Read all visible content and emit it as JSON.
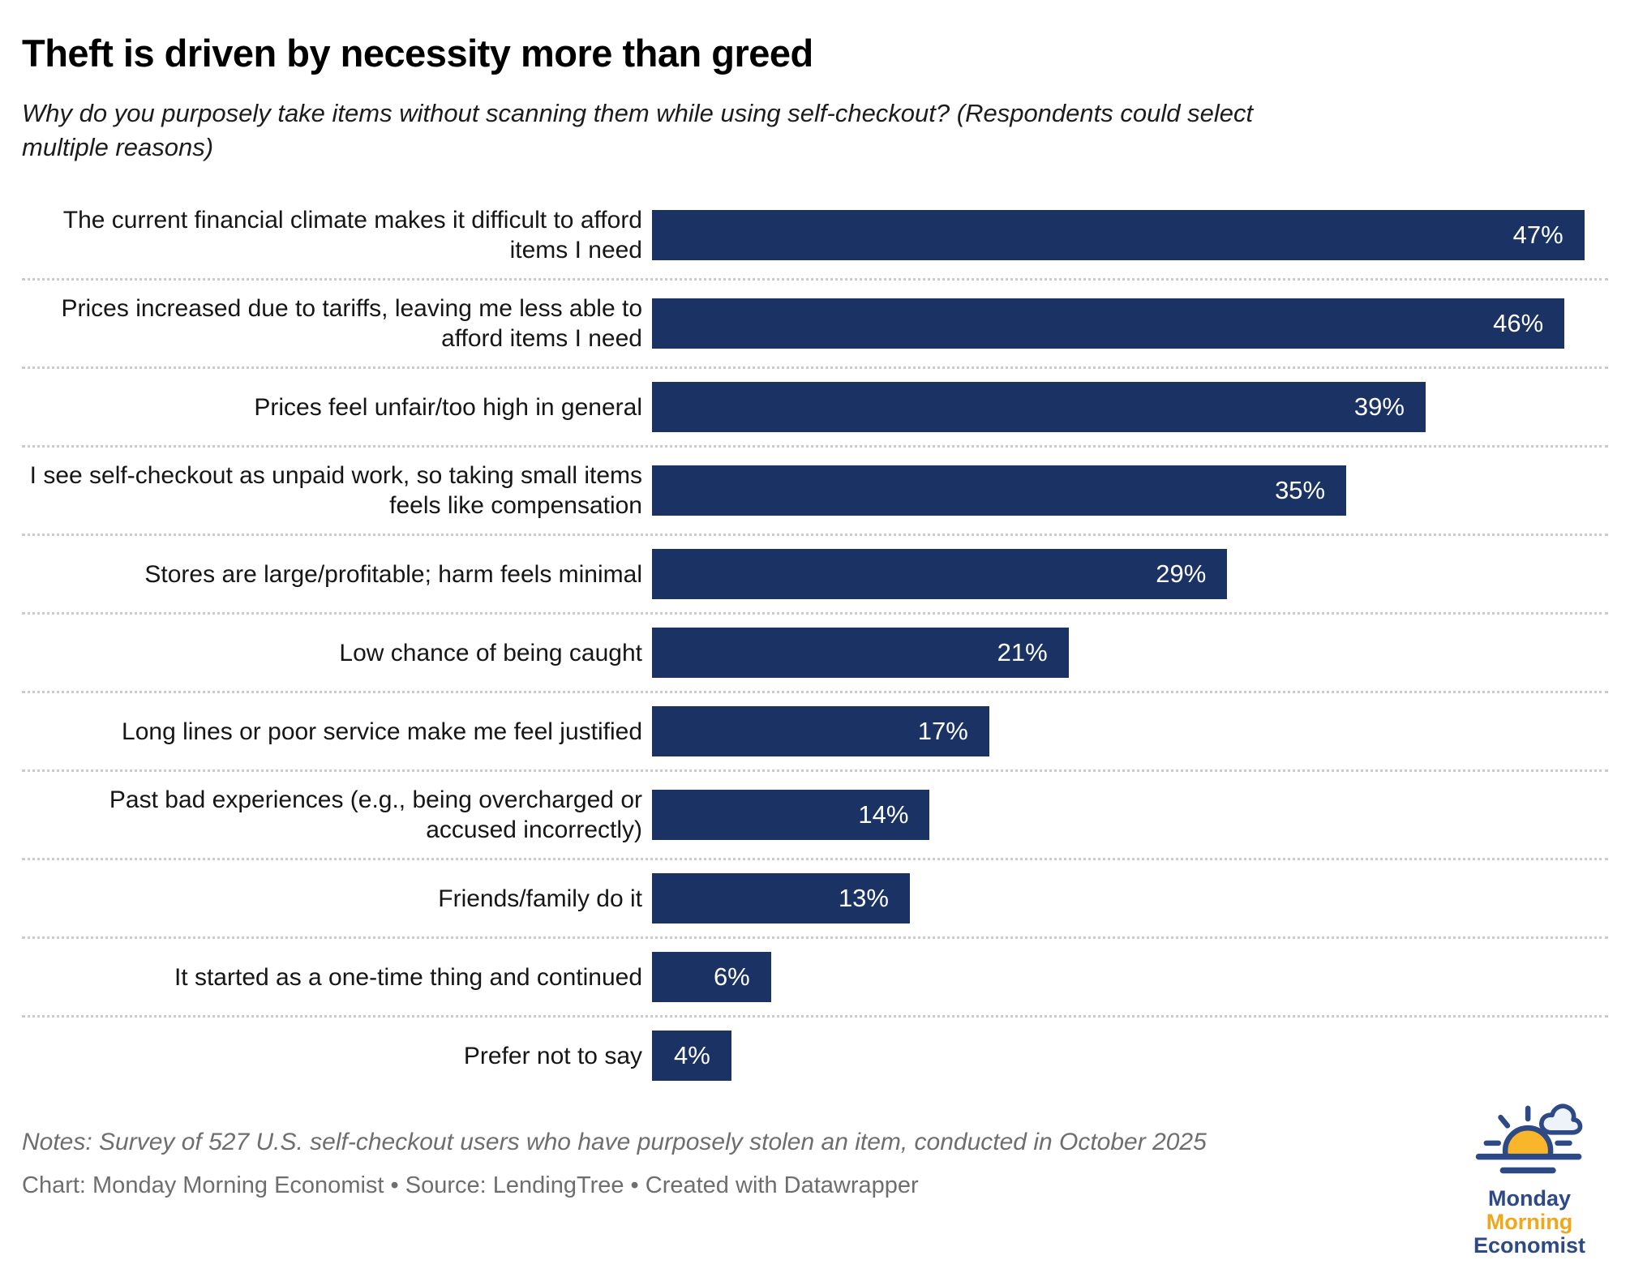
{
  "title": "Theft is driven by necessity more than greed",
  "subtitle": "Why do you purposely take items without scanning them while using self-checkout? (Respondents could select multiple reasons)",
  "chart_data": {
    "type": "bar",
    "orientation": "horizontal",
    "title": "Theft is driven by necessity more than greed",
    "subtitle": "Why do you purposely take items without scanning them while using self-checkout? (Respondents could select multiple reasons)",
    "categories": [
      "The current financial climate makes it difficult to afford items I need",
      "Prices increased due to tariffs, leaving me less able to afford items I need",
      "Prices feel unfair/too high in general",
      "I see self-checkout as unpaid work, so taking small items feels like compensation",
      "Stores are large/profitable; harm feels minimal",
      "Low chance of being caught",
      "Long lines or poor service make me feel justified",
      "Past bad experiences (e.g., being overcharged or accused incorrectly)",
      "Friends/family do it",
      "It started as a one-time thing and continued",
      "Prefer not to say"
    ],
    "values": [
      47,
      46,
      39,
      35,
      29,
      21,
      17,
      14,
      13,
      6,
      4
    ],
    "value_labels": [
      "47%",
      "46%",
      "39%",
      "35%",
      "29%",
      "21%",
      "17%",
      "14%",
      "13%",
      "6%",
      "4%"
    ],
    "value_suffix": "%",
    "xlim": [
      0,
      48.2
    ],
    "grid": false,
    "legend": "none",
    "bar_color": "#1a3264",
    "value_label_color": "#ffffff",
    "separator_color": "#cbcbcb"
  },
  "footer": {
    "notes": "Notes: Survey of 527 U.S. self-checkout users who have purposely stolen an item, conducted in October 2025",
    "credit": "Chart: Monday Morning Economist • Source: LendingTree • Created with Datawrapper"
  },
  "logo": {
    "icon": "sunrise-cloud-icon",
    "line1": "Monday",
    "line2": "Morning",
    "line3": "Economist",
    "navy": "#2e4a86",
    "yellow": "#f2a71b",
    "sun_fill": "#f9b62a",
    "cloud_fill": "#edf3f9"
  }
}
